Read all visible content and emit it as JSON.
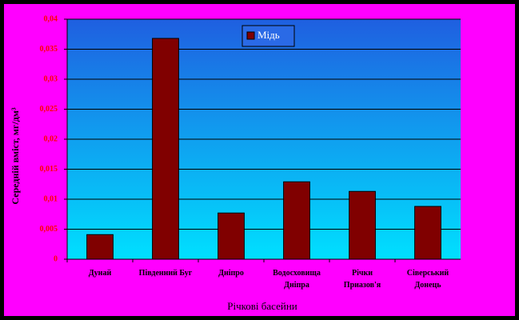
{
  "chart_data": {
    "type": "bar",
    "categories": [
      "Дунай",
      "Південний Буг",
      "Дніпро",
      "Водосховища\nДніпра",
      "Річки\nПриазов'я",
      "Сіверський\nДонець"
    ],
    "series": [
      {
        "name": "Мідь",
        "color": "#800000",
        "values": [
          0.0041,
          0.0368,
          0.0077,
          0.0129,
          0.0113,
          0.0088
        ]
      }
    ],
    "ylim": [
      0,
      0.04
    ],
    "yticks": [
      0,
      {
        "value": 0.005,
        "label": "0,005"
      },
      {
        "value": 0.01,
        "label": "0,01"
      },
      {
        "value": 0.015,
        "label": "0,015"
      },
      {
        "value": 0.02,
        "label": "0,02"
      },
      {
        "value": 0.025,
        "label": "0,025"
      },
      {
        "value": 0.03,
        "label": "0,03"
      },
      {
        "value": 0.035,
        "label": "0,035"
      },
      {
        "value": 0.04,
        "label": "0,04"
      }
    ],
    "grid": true,
    "xlabel": "Річкові басейни",
    "ylabel": "Середній вміст, мг/дм³",
    "legend": "top"
  }
}
